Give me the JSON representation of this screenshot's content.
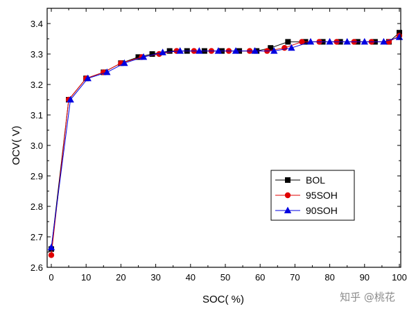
{
  "chart_data": {
    "type": "line",
    "title": "",
    "xlabel": "SOC( %)",
    "ylabel": "OCV( V)",
    "xlim": [
      0,
      100
    ],
    "ylim": [
      2.6,
      3.45
    ],
    "xticks": [
      0,
      10,
      20,
      30,
      40,
      50,
      60,
      70,
      80,
      90,
      100
    ],
    "yticks": [
      2.6,
      2.7,
      2.8,
      2.9,
      3.0,
      3.1,
      3.2,
      3.3,
      3.4
    ],
    "xtick_labels": [
      "0",
      "10",
      "20",
      "30",
      "40",
      "50",
      "60",
      "70",
      "80",
      "90",
      "100"
    ],
    "ytick_labels": [
      "2.6",
      "2.7",
      "2.8",
      "2.9",
      "3.0",
      "3.1",
      "3.2",
      "3.3",
      "3.4"
    ],
    "grid": false,
    "legend_position": "lower-right",
    "series": [
      {
        "name": "BOL",
        "marker": "square",
        "color": "#000000",
        "x": [
          0,
          5,
          10,
          15,
          20,
          25,
          29,
          34,
          39,
          44,
          49,
          54,
          59,
          63,
          68,
          73,
          78,
          83,
          88,
          93,
          97,
          100
        ],
        "y": [
          2.66,
          3.15,
          3.22,
          3.24,
          3.27,
          3.29,
          3.3,
          3.31,
          3.31,
          3.31,
          3.31,
          3.31,
          3.31,
          3.32,
          3.34,
          3.34,
          3.34,
          3.34,
          3.34,
          3.34,
          3.34,
          3.37
        ]
      },
      {
        "name": "95SOH",
        "marker": "circle",
        "color": "#e00000",
        "x": [
          0,
          5,
          10,
          15,
          20,
          26,
          31,
          36,
          41,
          46,
          51,
          57,
          62,
          67,
          72,
          77,
          82,
          87,
          92,
          97,
          100
        ],
        "y": [
          2.64,
          3.15,
          3.22,
          3.24,
          3.27,
          3.29,
          3.3,
          3.31,
          3.31,
          3.31,
          3.31,
          3.31,
          3.31,
          3.32,
          3.34,
          3.34,
          3.34,
          3.34,
          3.34,
          3.34,
          3.36
        ]
      },
      {
        "name": "90SOH",
        "marker": "triangle",
        "color": "#0000e0",
        "x": [
          0,
          5.5,
          10.5,
          16,
          21,
          26.5,
          32,
          37,
          42.5,
          48,
          53,
          58.5,
          64,
          69,
          74.5,
          80,
          85,
          90,
          95.5,
          100
        ],
        "y": [
          2.665,
          3.15,
          3.22,
          3.24,
          3.27,
          3.29,
          3.305,
          3.31,
          3.31,
          3.31,
          3.31,
          3.31,
          3.31,
          3.32,
          3.34,
          3.34,
          3.34,
          3.34,
          3.34,
          3.355
        ]
      }
    ]
  },
  "watermark": "知乎 @桃花"
}
